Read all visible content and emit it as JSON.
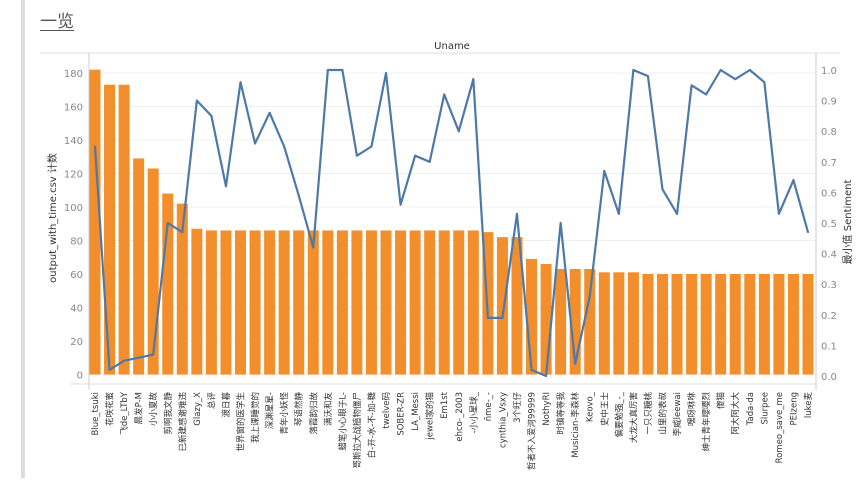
{
  "page_title": "一览",
  "chart_data": {
    "type": "bar+line",
    "title": "Uname",
    "ylabel_left": "output_with_time.csv 计数",
    "ylabel_right": "最小值 Sentiment",
    "ylim_left": [
      0,
      190
    ],
    "ylim_right": [
      0,
      1.0
    ],
    "yticks_left": [
      0,
      20,
      40,
      60,
      80,
      100,
      120,
      140,
      160,
      180
    ],
    "yticks_right": [
      "0.0",
      "0.1",
      "0.2",
      "0.3",
      "0.4",
      "0.5",
      "0.6",
      "0.7",
      "0.8",
      "0.9",
      "1.0"
    ],
    "grid": true,
    "colors": {
      "bar": "#f28e2b",
      "line": "#4e79a7"
    },
    "categories": [
      "Blue_tsuki",
      "花咲花蜜",
      "飞de_LTbY",
      "晨发P-M",
      "小小夏故",
      "剪啊我文静",
      "已新建感谢难违",
      "Glazy_X",
      "总评",
      "渡日暮",
      "世界窗的医学生",
      "我上课睡觉的",
      "深渊星星-",
      "青年小妖怪",
      "琴语然静",
      "落霞韵归故",
      "满沃和友",
      "蜡笔小心眼子L-",
      "哥斯拉大战植物僵尸",
      "白-开-水-不-加-糖",
      "twelve码",
      "SOBER-ZR",
      "LA_Messi",
      "jewel家的猫",
      "Em1st",
      "ehco-_2003",
      "-小小星球_",
      "ñme-_-",
      "cynthia_Vsxy",
      "3个旺仔",
      "哲者不入爱河99999",
      "NothyRI",
      "时镇等等我",
      "Musician-李森林",
      "Keovo_",
      "史中王士",
      "偏要勉强_-_",
      "大龙大真厉害",
      "一只只糖桃",
      "山里的表叔",
      "李威leewai",
      "嘿呀咻咻",
      "绅士青年嘤嘤烈",
      "傻猫",
      "阿大阿大大",
      "Tada-da",
      "Slurpee",
      "Romeo_save_me",
      "PEIzeng",
      "luke麦"
    ],
    "series": [
      {
        "type": "bar",
        "axis": "left",
        "values": [
          182,
          173,
          173,
          129,
          123,
          108,
          102,
          87,
          86,
          86,
          86,
          86,
          86,
          86,
          86,
          86,
          86,
          86,
          86,
          86,
          86,
          86,
          86,
          86,
          86,
          86,
          86,
          85,
          82,
          82,
          69,
          66,
          63,
          63,
          63,
          61,
          61,
          61,
          60,
          60,
          60,
          60,
          60,
          60,
          60,
          60,
          60,
          60,
          60,
          60
        ]
      },
      {
        "type": "line",
        "axis": "right",
        "values": [
          0.75,
          0.02,
          0.05,
          0.06,
          0.07,
          0.5,
          0.47,
          0.9,
          0.85,
          0.62,
          0.96,
          0.76,
          0.86,
          0.75,
          0.59,
          0.42,
          1.0,
          1.0,
          0.72,
          0.75,
          0.99,
          0.56,
          0.72,
          0.7,
          0.92,
          0.8,
          0.97,
          0.19,
          0.19,
          0.53,
          0.02,
          0.0,
          0.5,
          0.04,
          0.26,
          0.67,
          0.53,
          1.0,
          0.98,
          0.61,
          0.53,
          0.95,
          0.92,
          1.0,
          0.97,
          1.0,
          0.96,
          0.53,
          0.64,
          0.47
        ]
      }
    ]
  }
}
